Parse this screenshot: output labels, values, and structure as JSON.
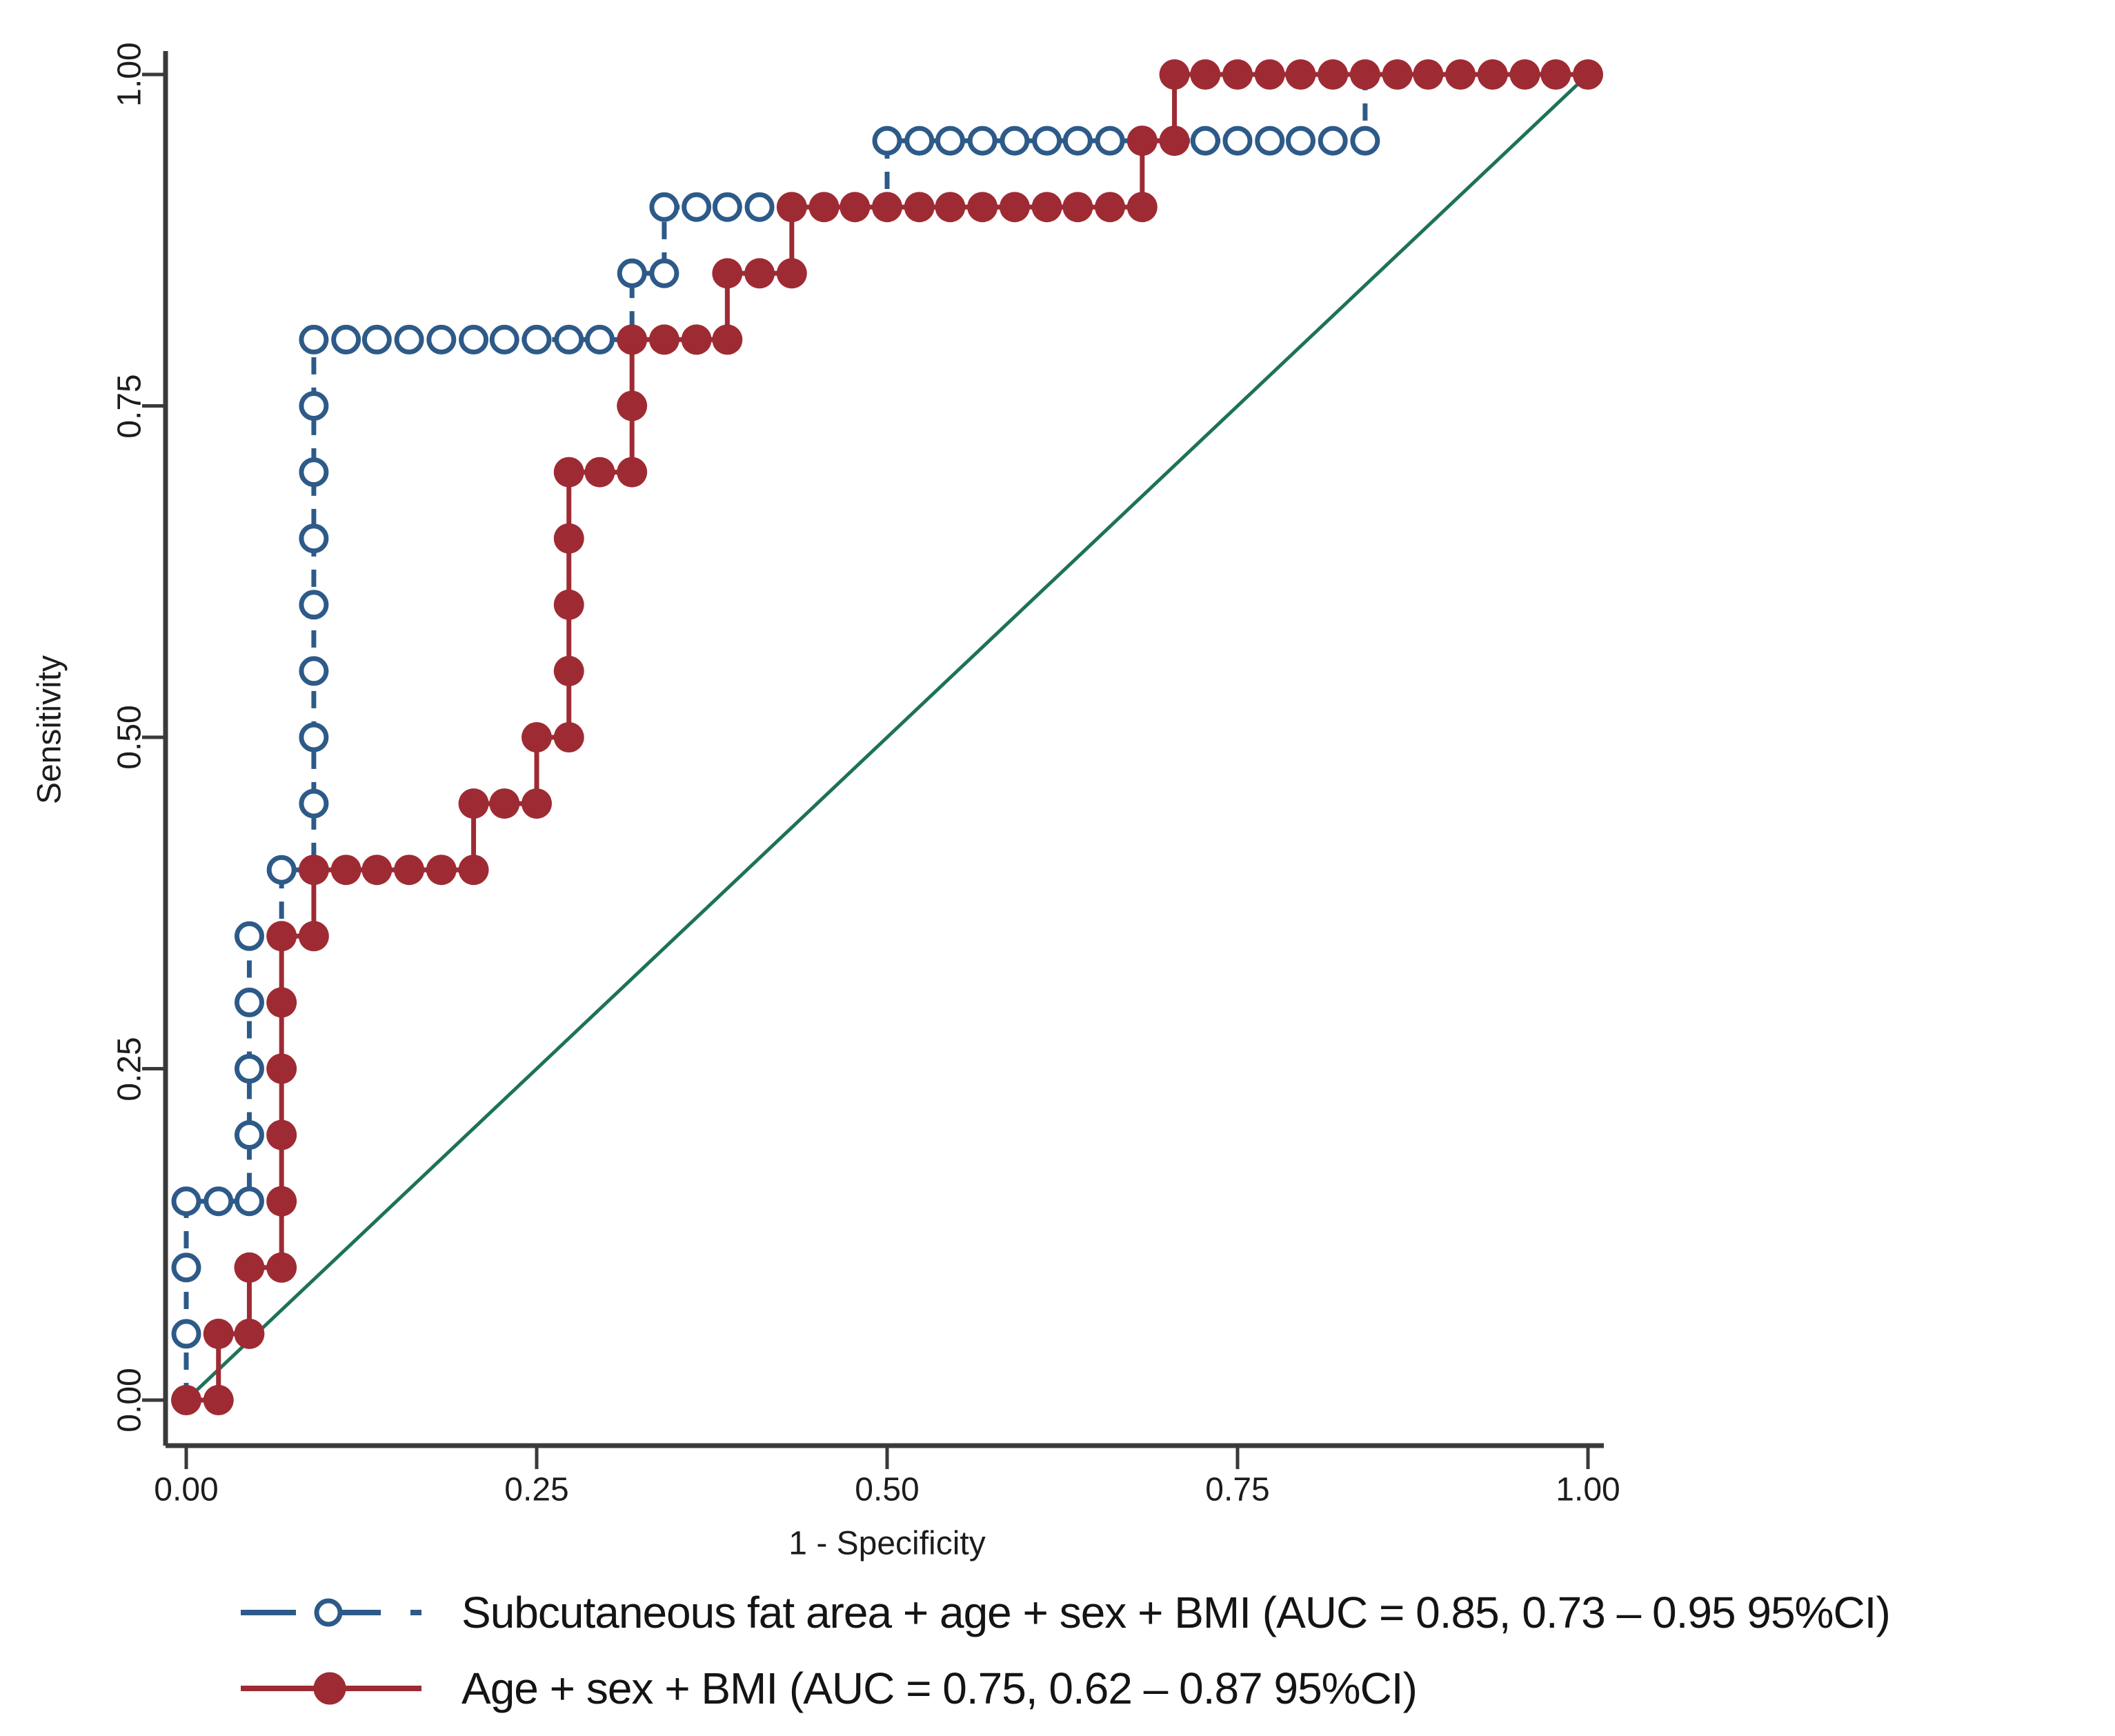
{
  "figure": {
    "background": "#ffffff"
  },
  "chart_data": {
    "type": "line",
    "subtype": "roc-step-curves",
    "title": "",
    "xlabel": "1 - Specificity",
    "ylabel": "Sensitivity",
    "xlim": [
      0,
      1
    ],
    "ylim": [
      0,
      1
    ],
    "grid": false,
    "legend_position": "bottom-left",
    "axis_color": "#3a3a3a",
    "text_color": "#1c1c1c",
    "x_ticks": [
      {
        "value": 0.0,
        "label": "0.00"
      },
      {
        "value": 0.25,
        "label": "0.25"
      },
      {
        "value": 0.5,
        "label": "0.50"
      },
      {
        "value": 0.75,
        "label": "0.75"
      },
      {
        "value": 1.0,
        "label": "1.00"
      }
    ],
    "y_ticks": [
      {
        "value": 0.0,
        "label": "0.00"
      },
      {
        "value": 0.25,
        "label": "0.25"
      },
      {
        "value": 0.5,
        "label": "0.50"
      },
      {
        "value": 0.75,
        "label": "0.75"
      },
      {
        "value": 1.0,
        "label": "1.00"
      }
    ],
    "reference_line": {
      "name": "chance-diagonal",
      "from": [
        0,
        0
      ],
      "to": [
        1,
        1
      ],
      "color": "#1d7258"
    },
    "series": [
      {
        "name": "Subcutaneous fat area + age + sex + BMI",
        "auc": 0.85,
        "ci_low": 0.73,
        "ci_high": 0.95,
        "legend_label": "Subcutaneous fat area + age + sex + BMI (AUC = 0.85, 0.73 – 0.95 95%CI)",
        "color": "#2d5a88",
        "line_style": "dashed",
        "marker": "open-circle",
        "points": [
          [
            0,
            0
          ],
          [
            0,
            0.05
          ],
          [
            0,
            0.1
          ],
          [
            0,
            0.15
          ],
          [
            0.023,
            0.15
          ],
          [
            0.045,
            0.15
          ],
          [
            0.045,
            0.2
          ],
          [
            0.045,
            0.25
          ],
          [
            0.045,
            0.3
          ],
          [
            0.045,
            0.35
          ],
          [
            0.068,
            0.35
          ],
          [
            0.068,
            0.4
          ],
          [
            0.091,
            0.4
          ],
          [
            0.091,
            0.45
          ],
          [
            0.091,
            0.5
          ],
          [
            0.091,
            0.55
          ],
          [
            0.091,
            0.6
          ],
          [
            0.091,
            0.65
          ],
          [
            0.091,
            0.7
          ],
          [
            0.091,
            0.75
          ],
          [
            0.091,
            0.8
          ],
          [
            0.114,
            0.8
          ],
          [
            0.136,
            0.8
          ],
          [
            0.159,
            0.8
          ],
          [
            0.182,
            0.8
          ],
          [
            0.205,
            0.8
          ],
          [
            0.227,
            0.8
          ],
          [
            0.25,
            0.8
          ],
          [
            0.273,
            0.8
          ],
          [
            0.295,
            0.8
          ],
          [
            0.318,
            0.8
          ],
          [
            0.318,
            0.85
          ],
          [
            0.341,
            0.85
          ],
          [
            0.341,
            0.9
          ],
          [
            0.364,
            0.9
          ],
          [
            0.386,
            0.9
          ],
          [
            0.409,
            0.9
          ],
          [
            0.432,
            0.9
          ],
          [
            0.455,
            0.9
          ],
          [
            0.477,
            0.9
          ],
          [
            0.5,
            0.9
          ],
          [
            0.5,
            0.95
          ],
          [
            0.523,
            0.95
          ],
          [
            0.545,
            0.95
          ],
          [
            0.568,
            0.95
          ],
          [
            0.591,
            0.95
          ],
          [
            0.614,
            0.95
          ],
          [
            0.636,
            0.95
          ],
          [
            0.659,
            0.95
          ],
          [
            0.682,
            0.95
          ],
          [
            0.705,
            0.95
          ],
          [
            0.727,
            0.95
          ],
          [
            0.75,
            0.95
          ],
          [
            0.773,
            0.95
          ],
          [
            0.795,
            0.95
          ],
          [
            0.818,
            0.95
          ],
          [
            0.841,
            0.95
          ],
          [
            0.841,
            1
          ],
          [
            0.864,
            1
          ],
          [
            0.886,
            1
          ],
          [
            0.909,
            1
          ],
          [
            0.932,
            1
          ],
          [
            0.955,
            1
          ],
          [
            0.977,
            1
          ],
          [
            1,
            1
          ]
        ]
      },
      {
        "name": "Age + sex + BMI",
        "auc": 0.75,
        "ci_low": 0.62,
        "ci_high": 0.87,
        "legend_label": "Age + sex + BMI (AUC = 0.75, 0.62 – 0.87 95%CI)",
        "color": "#9e2b33",
        "line_style": "solid",
        "marker": "filled-circle",
        "points": [
          [
            0,
            0
          ],
          [
            0.023,
            0
          ],
          [
            0.023,
            0.05
          ],
          [
            0.045,
            0.05
          ],
          [
            0.045,
            0.1
          ],
          [
            0.068,
            0.1
          ],
          [
            0.068,
            0.15
          ],
          [
            0.068,
            0.2
          ],
          [
            0.068,
            0.25
          ],
          [
            0.068,
            0.3
          ],
          [
            0.068,
            0.35
          ],
          [
            0.091,
            0.35
          ],
          [
            0.091,
            0.4
          ],
          [
            0.114,
            0.4
          ],
          [
            0.136,
            0.4
          ],
          [
            0.159,
            0.4
          ],
          [
            0.182,
            0.4
          ],
          [
            0.205,
            0.4
          ],
          [
            0.205,
            0.45
          ],
          [
            0.227,
            0.45
          ],
          [
            0.25,
            0.45
          ],
          [
            0.25,
            0.5
          ],
          [
            0.273,
            0.5
          ],
          [
            0.273,
            0.55
          ],
          [
            0.273,
            0.6
          ],
          [
            0.273,
            0.65
          ],
          [
            0.273,
            0.7
          ],
          [
            0.295,
            0.7
          ],
          [
            0.318,
            0.7
          ],
          [
            0.318,
            0.75
          ],
          [
            0.318,
            0.8
          ],
          [
            0.341,
            0.8
          ],
          [
            0.364,
            0.8
          ],
          [
            0.386,
            0.8
          ],
          [
            0.386,
            0.85
          ],
          [
            0.409,
            0.85
          ],
          [
            0.432,
            0.85
          ],
          [
            0.432,
            0.9
          ],
          [
            0.455,
            0.9
          ],
          [
            0.477,
            0.9
          ],
          [
            0.5,
            0.9
          ],
          [
            0.523,
            0.9
          ],
          [
            0.545,
            0.9
          ],
          [
            0.568,
            0.9
          ],
          [
            0.591,
            0.9
          ],
          [
            0.614,
            0.9
          ],
          [
            0.636,
            0.9
          ],
          [
            0.659,
            0.9
          ],
          [
            0.682,
            0.9
          ],
          [
            0.682,
            0.95
          ],
          [
            0.705,
            0.95
          ],
          [
            0.705,
            1
          ],
          [
            0.727,
            1
          ],
          [
            0.75,
            1
          ],
          [
            0.773,
            1
          ],
          [
            0.795,
            1
          ],
          [
            0.818,
            1
          ],
          [
            0.841,
            1
          ],
          [
            0.864,
            1
          ],
          [
            0.886,
            1
          ],
          [
            0.909,
            1
          ],
          [
            0.932,
            1
          ],
          [
            0.955,
            1
          ],
          [
            0.977,
            1
          ],
          [
            1,
            1
          ]
        ]
      }
    ]
  }
}
